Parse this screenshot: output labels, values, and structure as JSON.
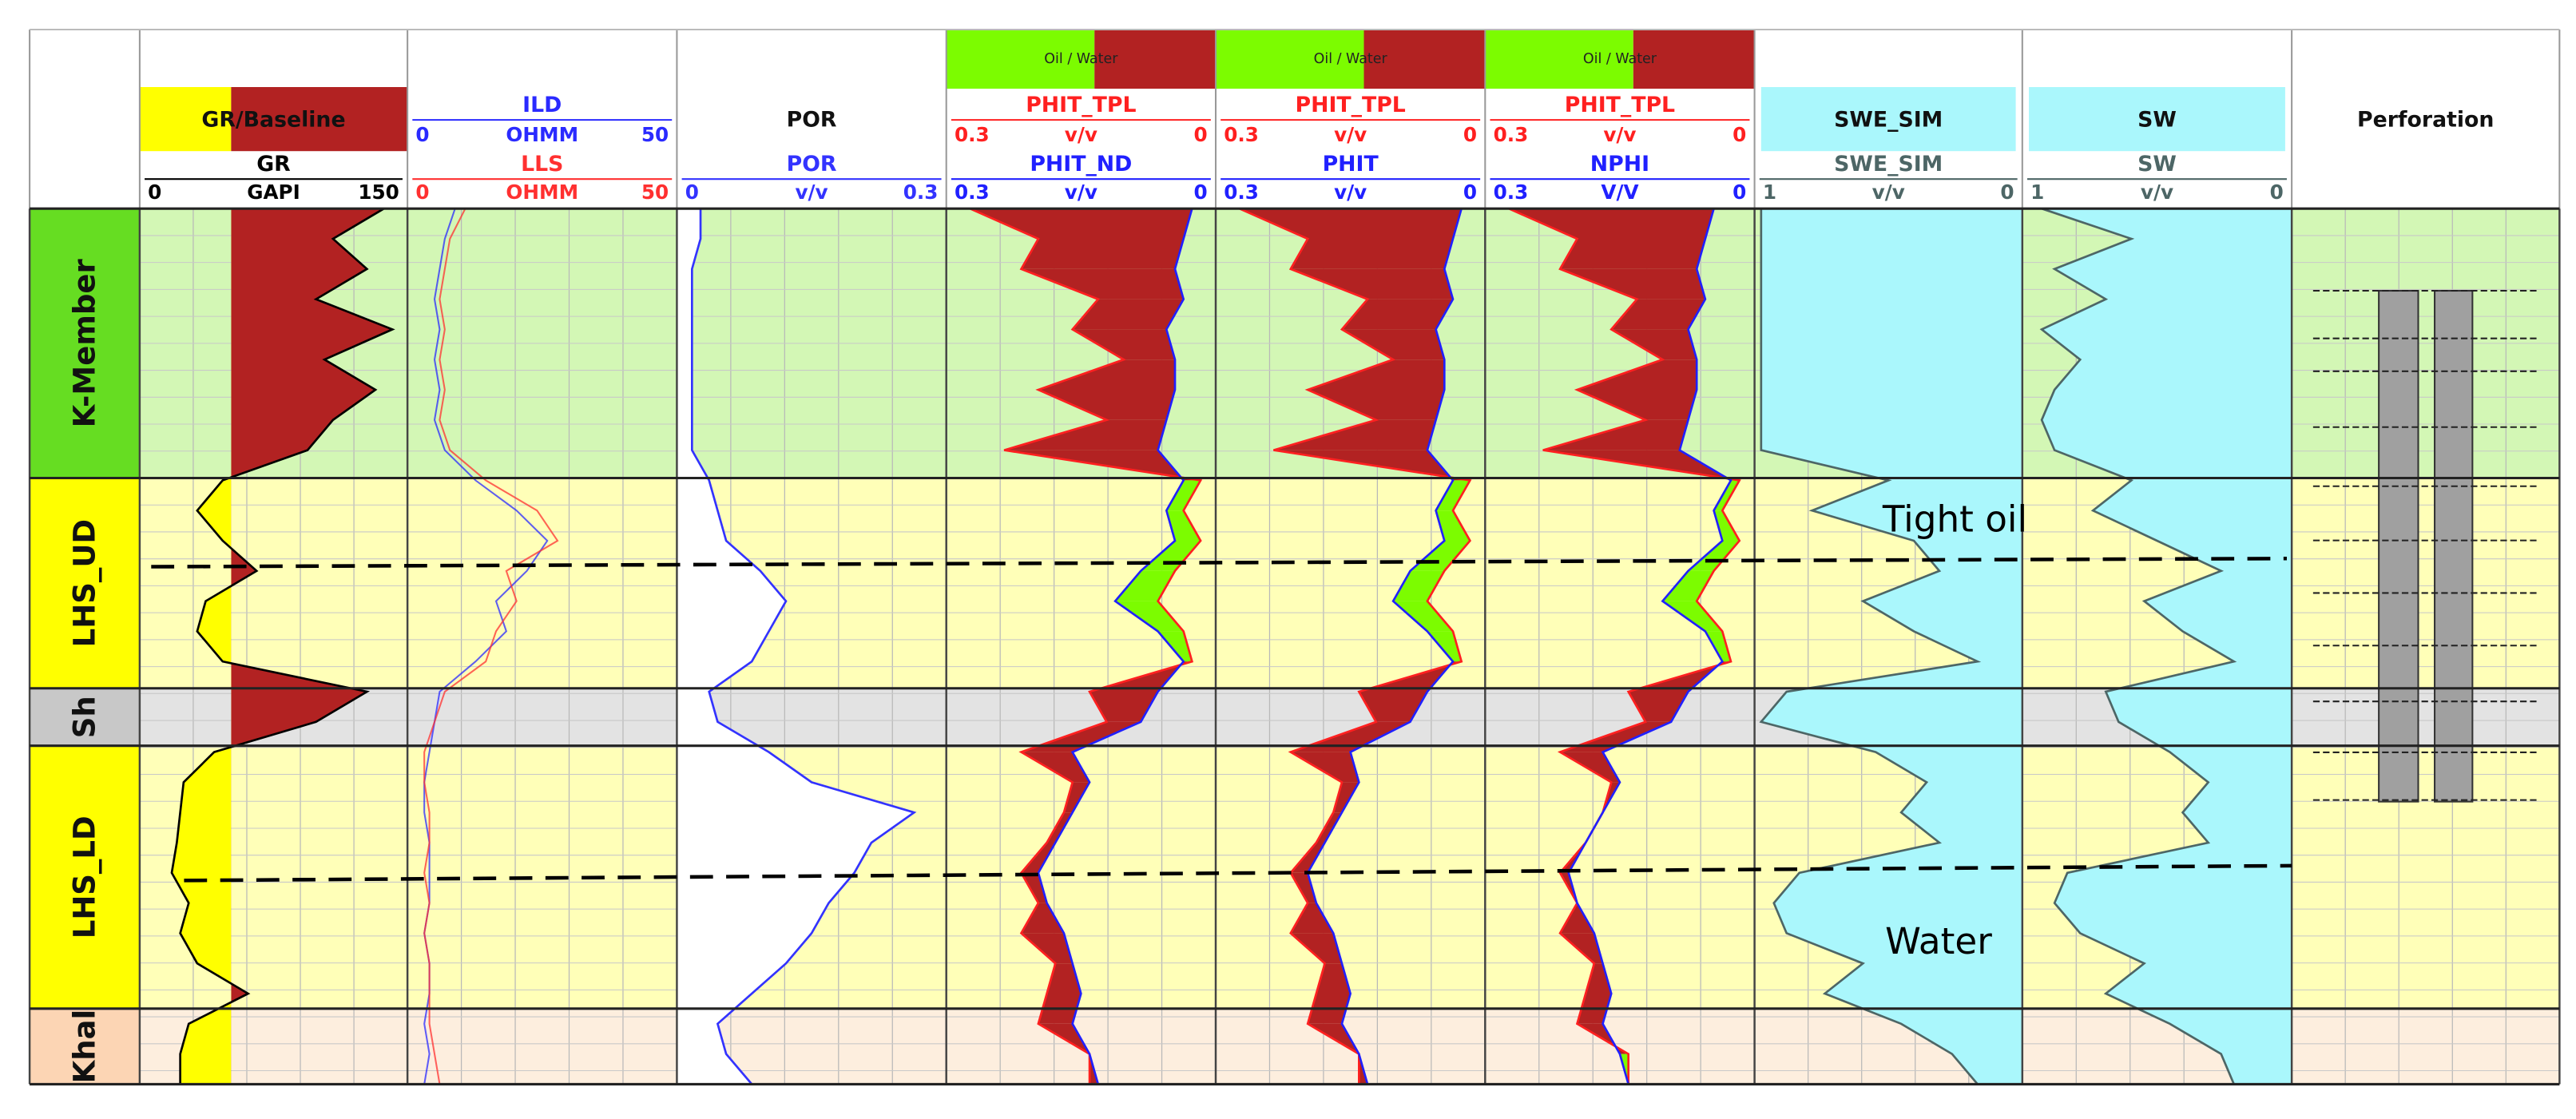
{
  "chart_data": [
    {
      "type": "line",
      "title": "GR/Baseline",
      "fill": "baseline",
      "baseline": 50,
      "fill_colors": [
        "#ffff00",
        "#b22222"
      ],
      "series": [
        {
          "name": "GR",
          "unit": "GAPI",
          "xlim": [
            0,
            150
          ],
          "color": "#000000",
          "values": [
            140,
            110,
            130,
            100,
            145,
            105,
            135,
            110,
            95,
            45,
            30,
            45,
            65,
            35,
            30,
            45,
            130,
            100,
            40,
            22,
            20,
            18,
            15,
            25,
            20,
            30,
            60,
            25,
            20,
            20
          ]
        }
      ]
    },
    {
      "type": "line",
      "series": [
        {
          "name": "ILD",
          "unit": "OHMM",
          "xlim": [
            0,
            50
          ],
          "color": "#2a2aff",
          "values": [
            8,
            6,
            5,
            4,
            5,
            4,
            5,
            4,
            6,
            12,
            20,
            26,
            22,
            16,
            18,
            12,
            5,
            4,
            3,
            2,
            2,
            3,
            3,
            3,
            2,
            3,
            3,
            2,
            3,
            2
          ]
        },
        {
          "name": "LLS",
          "unit": "OHMM",
          "xlim": [
            0,
            50
          ],
          "color": "#ff3030",
          "values": [
            10,
            7,
            6,
            5,
            6,
            5,
            6,
            5,
            7,
            14,
            24,
            28,
            18,
            20,
            16,
            14,
            6,
            4,
            2,
            2,
            3,
            3,
            2,
            3,
            2,
            3,
            3,
            3,
            4,
            5
          ]
        }
      ]
    },
    {
      "type": "line",
      "title": "POR",
      "fill": "left",
      "fill_colors": [
        "#ffffff"
      ],
      "series": [
        {
          "name": "POR",
          "unit": "v/v",
          "xlim": [
            0,
            0.3
          ],
          "color": "#3333ff",
          "values": [
            0.02,
            0.02,
            0.01,
            0.01,
            0.01,
            0.01,
            0.01,
            0.01,
            0.01,
            0.03,
            0.04,
            0.05,
            0.09,
            0.12,
            0.1,
            0.08,
            0.03,
            0.04,
            0.1,
            0.15,
            0.27,
            0.22,
            0.2,
            0.17,
            0.15,
            0.12,
            0.08,
            0.04,
            0.05,
            0.08
          ]
        }
      ]
    },
    {
      "type": "line",
      "legend": "Oil / Water",
      "fill": "between",
      "fill_colors": [
        "#7cfc00",
        "#b22222"
      ],
      "series": [
        {
          "name": "PHIT_TPL",
          "unit": "v/v",
          "xlim": [
            0.3,
            0
          ],
          "color": "#ff2020",
          "values": [
            0.28,
            0.2,
            0.22,
            0.13,
            0.16,
            0.1,
            0.2,
            0.12,
            0.24,
            0.01,
            0.03,
            0.01,
            0.04,
            0.06,
            0.03,
            0.02,
            0.14,
            0.12,
            0.22,
            0.16,
            0.17,
            0.19,
            0.22,
            0.2,
            0.22,
            0.18,
            0.19,
            0.2,
            0.14,
            0.14
          ]
        },
        {
          "name": "PHIT_ND",
          "unit": "v/v",
          "xlim": [
            0.3,
            0
          ],
          "color": "#2020ff",
          "values": [
            0.02,
            0.03,
            0.04,
            0.03,
            0.05,
            0.04,
            0.04,
            0.05,
            0.06,
            0.03,
            0.05,
            0.04,
            0.08,
            0.11,
            0.06,
            0.03,
            0.06,
            0.08,
            0.16,
            0.14,
            0.16,
            0.18,
            0.2,
            0.19,
            0.17,
            0.16,
            0.15,
            0.16,
            0.14,
            0.13
          ]
        }
      ]
    },
    {
      "type": "line",
      "legend": "Oil / Water",
      "fill": "between",
      "fill_colors": [
        "#7cfc00",
        "#b22222"
      ],
      "series": [
        {
          "name": "PHIT_TPL",
          "unit": "v/v",
          "xlim": [
            0.3,
            0
          ],
          "color": "#ff2020",
          "values": [
            0.28,
            0.2,
            0.22,
            0.13,
            0.16,
            0.1,
            0.2,
            0.12,
            0.24,
            0.01,
            0.03,
            0.01,
            0.04,
            0.06,
            0.03,
            0.02,
            0.14,
            0.12,
            0.22,
            0.16,
            0.17,
            0.19,
            0.22,
            0.2,
            0.22,
            0.18,
            0.19,
            0.2,
            0.14,
            0.14
          ]
        },
        {
          "name": "PHIT",
          "unit": "v/v",
          "xlim": [
            0.3,
            0
          ],
          "color": "#2020ff",
          "values": [
            0.02,
            0.03,
            0.04,
            0.03,
            0.05,
            0.04,
            0.04,
            0.05,
            0.06,
            0.03,
            0.05,
            0.04,
            0.08,
            0.1,
            0.06,
            0.03,
            0.06,
            0.08,
            0.15,
            0.14,
            0.16,
            0.18,
            0.2,
            0.19,
            0.17,
            0.16,
            0.15,
            0.16,
            0.14,
            0.13
          ]
        }
      ]
    },
    {
      "type": "line",
      "legend": "Oil / Water",
      "fill": "between",
      "fill_colors": [
        "#7cfc00",
        "#b22222"
      ],
      "series": [
        {
          "name": "PHIT_TPL",
          "unit": "v/v",
          "xlim": [
            0.3,
            0
          ],
          "color": "#ff2020",
          "values": [
            0.28,
            0.2,
            0.22,
            0.13,
            0.16,
            0.1,
            0.2,
            0.12,
            0.24,
            0.01,
            0.03,
            0.01,
            0.04,
            0.06,
            0.03,
            0.02,
            0.14,
            0.12,
            0.22,
            0.16,
            0.17,
            0.19,
            0.22,
            0.2,
            0.22,
            0.18,
            0.19,
            0.2,
            0.14,
            0.14
          ]
        },
        {
          "name": "NPHI",
          "unit": "V/V",
          "xlim": [
            0.3,
            0
          ],
          "color": "#2020ff",
          "values": [
            0.04,
            0.05,
            0.06,
            0.05,
            0.07,
            0.06,
            0.06,
            0.07,
            0.08,
            0.02,
            0.04,
            0.03,
            0.07,
            0.1,
            0.05,
            0.03,
            0.07,
            0.09,
            0.17,
            0.15,
            0.17,
            0.19,
            0.21,
            0.2,
            0.18,
            0.17,
            0.16,
            0.17,
            0.15,
            0.14
          ]
        }
      ]
    },
    {
      "type": "line",
      "title": "SWE_SIM",
      "fill": "right",
      "fill_colors": [
        "#aaf7fc"
      ],
      "series": [
        {
          "name": "SWE_SIM",
          "unit": "v/v",
          "xlim": [
            1,
            0
          ],
          "color": "#4d6666",
          "values": [
            1,
            1,
            1,
            1,
            1,
            1,
            1,
            1,
            1,
            0.5,
            0.8,
            0.4,
            0.3,
            0.6,
            0.4,
            0.15,
            0.9,
            1,
            0.55,
            0.35,
            0.45,
            0.3,
            0.85,
            0.95,
            0.9,
            0.6,
            0.75,
            0.45,
            0.25,
            0.15
          ]
        }
      ]
    },
    {
      "type": "line",
      "title": "SW",
      "fill": "right",
      "fill_colors": [
        "#aaf7fc"
      ],
      "series": [
        {
          "name": "SW",
          "unit": "v/v",
          "xlim": [
            1,
            0
          ],
          "color": "#4d6666",
          "values": [
            0.95,
            0.6,
            0.9,
            0.7,
            0.95,
            0.8,
            0.9,
            0.95,
            0.9,
            0.6,
            0.75,
            0.5,
            0.25,
            0.55,
            0.4,
            0.2,
            0.7,
            0.65,
            0.45,
            0.3,
            0.4,
            0.3,
            0.85,
            0.9,
            0.8,
            0.55,
            0.7,
            0.45,
            0.25,
            0.2
          ]
        }
      ]
    },
    {
      "type": "perforation",
      "title": "Perforation",
      "color": "#a0a0a0"
    }
  ],
  "zones": [
    {
      "label": "K-Member",
      "color": "#66dd22",
      "shade": "#d3f7b5"
    },
    {
      "label": "LHS_UD",
      "color": "#ffff00",
      "shade": "#ffffb8"
    },
    {
      "label": "Sh",
      "color": "#c8c8c8",
      "shade": "#e3e3e3"
    },
    {
      "label": "LHS_LD",
      "color": "#ffff00",
      "shade": "#ffffb8"
    },
    {
      "label": "Khal",
      "color": "#fcd5b4",
      "shade": "#fdeede"
    }
  ],
  "annotations": [
    "Tight oil",
    "Water"
  ]
}
